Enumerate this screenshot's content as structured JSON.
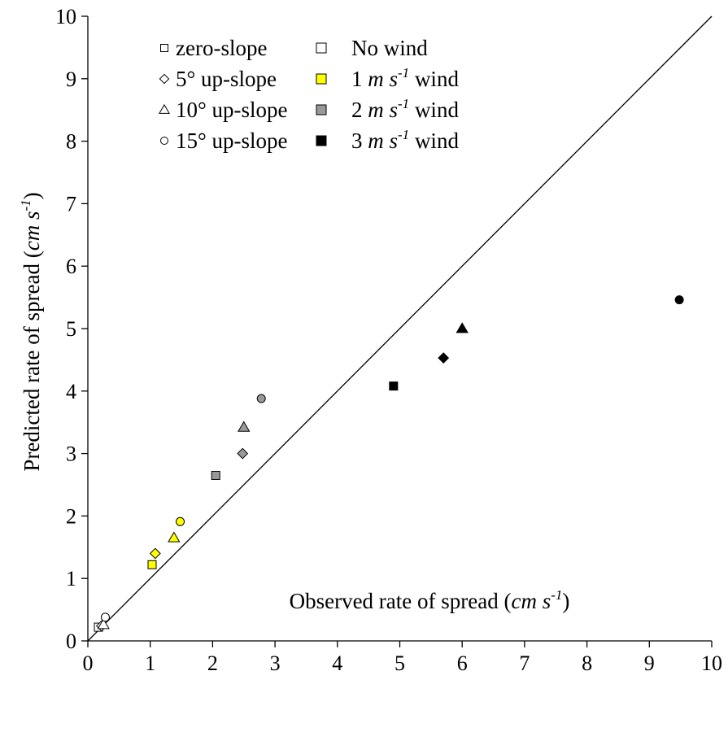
{
  "chart_data": {
    "type": "scatter",
    "title": "",
    "xlabel": {
      "prefix": "Observed rate of spread (",
      "unit_cm": "cm",
      "unit_s": "s",
      "exp": "-1",
      "suffix": ")"
    },
    "ylabel": {
      "prefix": "Predicted rate of spread (",
      "unit_cm": "cm",
      "unit_s": "s",
      "exp": "-1",
      "suffix": ")"
    },
    "xlim": [
      0,
      10
    ],
    "ylim": [
      0,
      10
    ],
    "xticks": [
      "0",
      "1",
      "2",
      "3",
      "4",
      "5",
      "6",
      "7",
      "8",
      "9",
      "10"
    ],
    "yticks": [
      "0",
      "1",
      "2",
      "3",
      "4",
      "5",
      "6",
      "7",
      "8",
      "9",
      "10"
    ],
    "grid": false,
    "reference_line": {
      "type": "1:1",
      "from": [
        0,
        0
      ],
      "to": [
        10,
        10
      ]
    },
    "legend": {
      "placement": "top-left",
      "shapes": [
        {
          "shape": "square",
          "label": "zero-slope"
        },
        {
          "shape": "diamond",
          "label": "5° up-slope"
        },
        {
          "shape": "triangle",
          "label": "10° up-slope"
        },
        {
          "shape": "circle",
          "label": "15° up-slope"
        }
      ],
      "winds": [
        {
          "color": "#ffffff",
          "pre": "No wind",
          "m": "",
          "s": "",
          "exp": "",
          "post": ""
        },
        {
          "color": "#ffff00",
          "pre": "1 ",
          "m": "m",
          "s": "s",
          "exp": "-1",
          "post": " wind"
        },
        {
          "color": "#999999",
          "pre": "2 ",
          "m": "m",
          "s": "s",
          "exp": "-1",
          "post": " wind"
        },
        {
          "color": "#000000",
          "pre": "3 ",
          "m": "m",
          "s": "s",
          "exp": "-1",
          "post": " wind"
        }
      ]
    },
    "points": [
      {
        "shape": "square",
        "wind": "No wind",
        "color": "#ffffff",
        "x": 0.17,
        "y": 0.22
      },
      {
        "shape": "diamond",
        "wind": "No wind",
        "color": "#ffffff",
        "x": 0.22,
        "y": 0.24
      },
      {
        "shape": "triangle",
        "wind": "No wind",
        "color": "#ffffff",
        "x": 0.25,
        "y": 0.26
      },
      {
        "shape": "circle",
        "wind": "No wind",
        "color": "#ffffff",
        "x": 0.28,
        "y": 0.38
      },
      {
        "shape": "square",
        "wind": "1 m s-1 wind",
        "color": "#ffff00",
        "x": 1.03,
        "y": 1.22
      },
      {
        "shape": "diamond",
        "wind": "1 m s-1 wind",
        "color": "#ffff00",
        "x": 1.08,
        "y": 1.4
      },
      {
        "shape": "triangle",
        "wind": "1 m s-1 wind",
        "color": "#ffff00",
        "x": 1.38,
        "y": 1.65
      },
      {
        "shape": "circle",
        "wind": "1 m s-1 wind",
        "color": "#ffff00",
        "x": 1.48,
        "y": 1.91
      },
      {
        "shape": "square",
        "wind": "2 m s-1 wind",
        "color": "#999999",
        "x": 2.05,
        "y": 2.65
      },
      {
        "shape": "diamond",
        "wind": "2 m s-1 wind",
        "color": "#999999",
        "x": 2.48,
        "y": 3.0
      },
      {
        "shape": "triangle",
        "wind": "2 m s-1 wind",
        "color": "#999999",
        "x": 2.5,
        "y": 3.42
      },
      {
        "shape": "circle",
        "wind": "2 m s-1 wind",
        "color": "#999999",
        "x": 2.78,
        "y": 3.88
      },
      {
        "shape": "square",
        "wind": "3 m s-1 wind",
        "color": "#000000",
        "x": 4.9,
        "y": 4.08
      },
      {
        "shape": "diamond",
        "wind": "3 m s-1 wind",
        "color": "#000000",
        "x": 5.7,
        "y": 4.53
      },
      {
        "shape": "triangle",
        "wind": "3 m s-1 wind",
        "color": "#000000",
        "x": 6.0,
        "y": 5.0
      },
      {
        "shape": "circle",
        "wind": "3 m s-1 wind",
        "color": "#000000",
        "x": 9.48,
        "y": 5.46
      }
    ]
  }
}
